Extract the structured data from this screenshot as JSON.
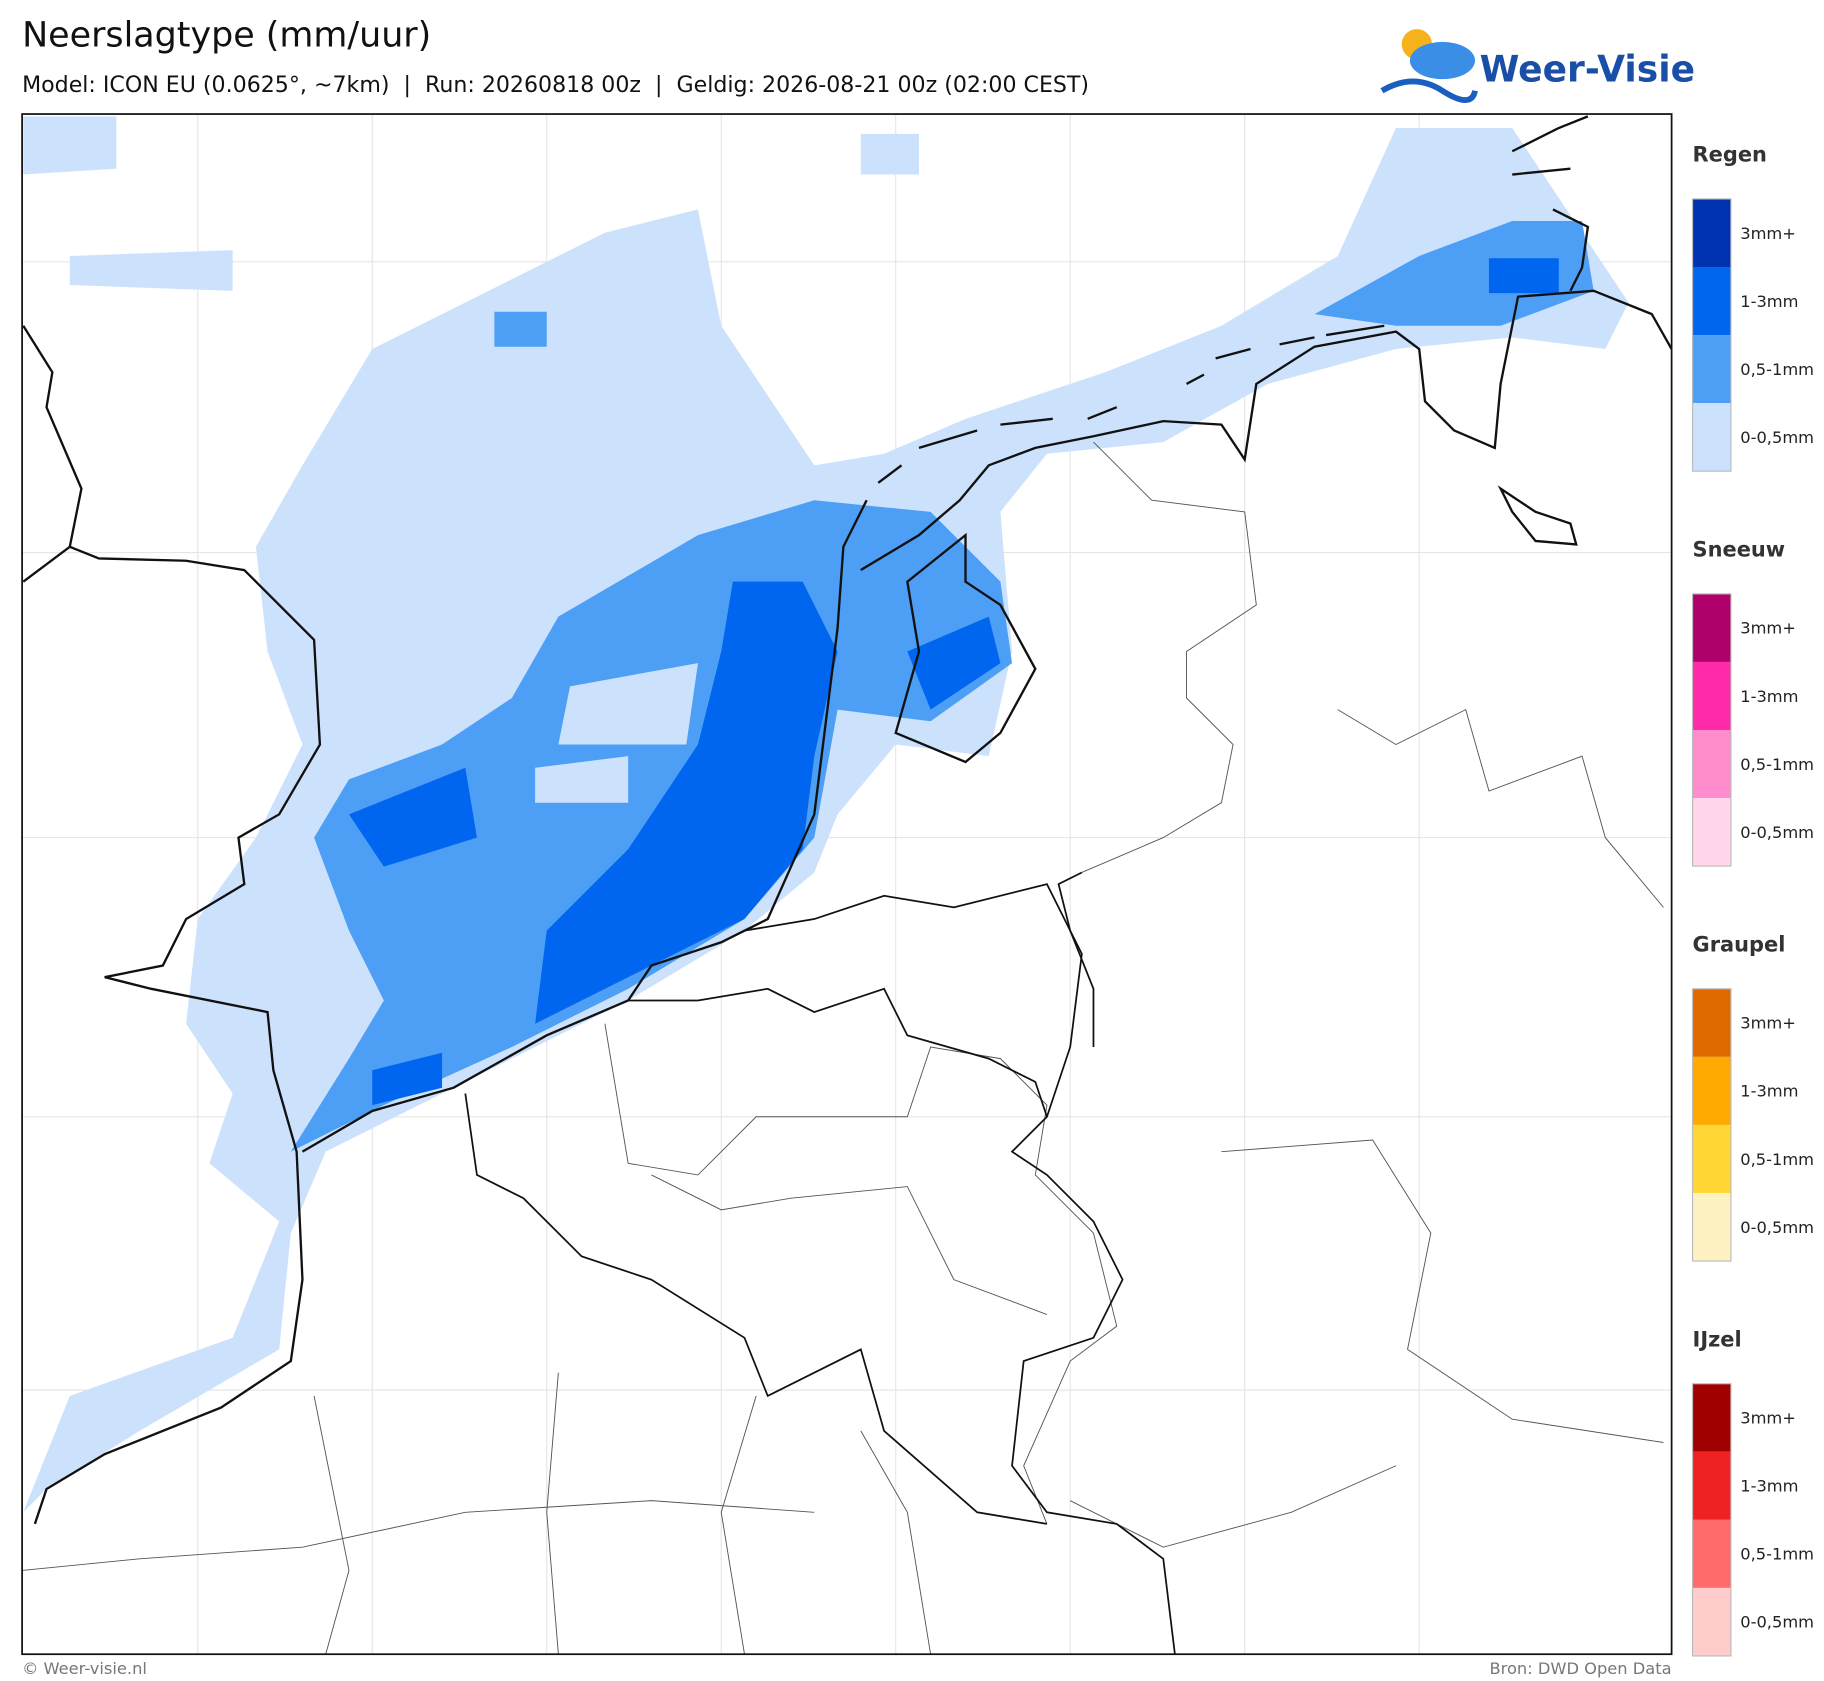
{
  "header": {
    "title": "Neerslagtype (mm/uur)",
    "subtitle": "Model: ICON EU (0.0625°, ~7km)  |  Run: 20260818 00z  |  Geldig: 2026-08-21 00z (02:00 CEST)",
    "logo": "Weer-Visie"
  },
  "legend": [
    {
      "title": "Regen",
      "items": [
        {
          "label": "3mm+",
          "color": "#0033b0"
        },
        {
          "label": "1-3mm",
          "color": "#0066f0"
        },
        {
          "label": "0,5-1mm",
          "color": "#4d9ef5"
        },
        {
          "label": "0-0,5mm",
          "color": "#cce2fc"
        }
      ]
    },
    {
      "title": "Sneeuw",
      "items": [
        {
          "label": "3mm+",
          "color": "#b0006a"
        },
        {
          "label": "1-3mm",
          "color": "#ff2aa8"
        },
        {
          "label": "0,5-1mm",
          "color": "#ff8ccc"
        },
        {
          "label": "0-0,5mm",
          "color": "#ffd6ec"
        }
      ]
    },
    {
      "title": "Graupel",
      "items": [
        {
          "label": "3mm+",
          "color": "#e06a00"
        },
        {
          "label": "1-3mm",
          "color": "#ffaa00"
        },
        {
          "label": "0,5-1mm",
          "color": "#ffd633"
        },
        {
          "label": "0-0,5mm",
          "color": "#fff2c2"
        }
      ]
    },
    {
      "title": "IJzel",
      "items": [
        {
          "label": "3mm+",
          "color": "#a00000"
        },
        {
          "label": "1-3mm",
          "color": "#ee2222"
        },
        {
          "label": "0,5-1mm",
          "color": "#ff6a6a"
        },
        {
          "label": "0-0,5mm",
          "color": "#ffcccc"
        }
      ]
    }
  ],
  "footer": {
    "left": "© Weer-visie.nl",
    "right": "Bron: DWD Open Data"
  }
}
